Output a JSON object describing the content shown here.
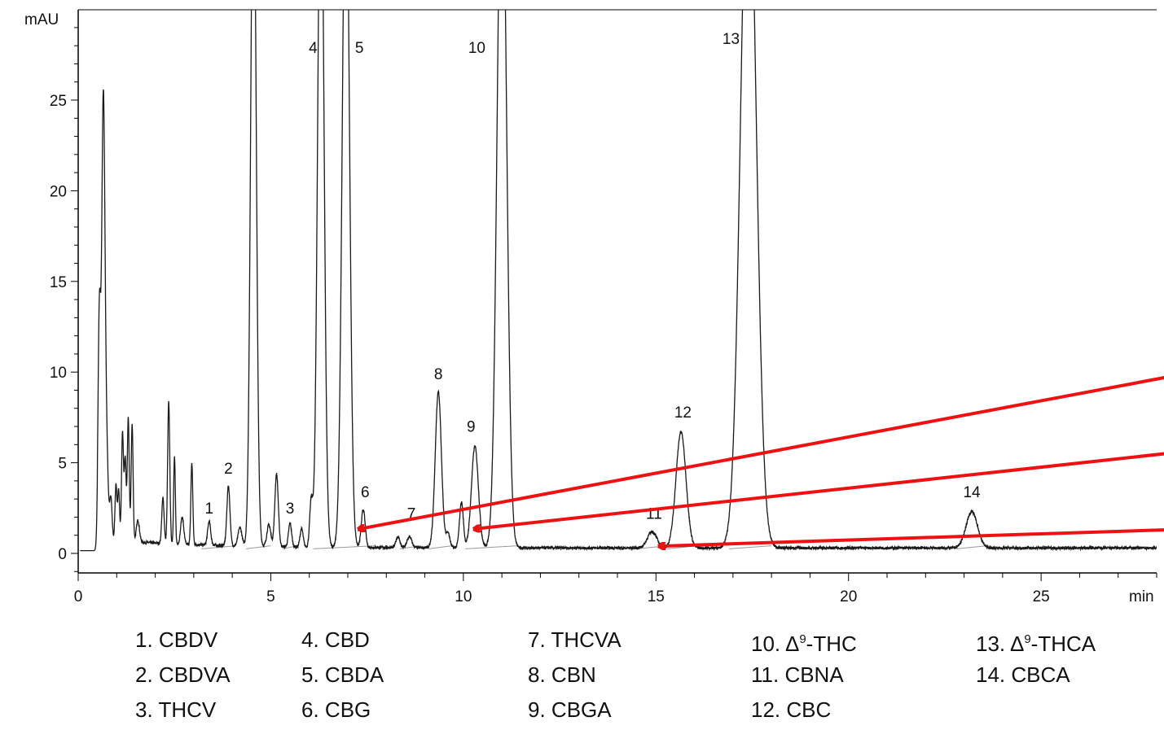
{
  "chart_data": {
    "type": "line",
    "ylabel": "mAU",
    "xlabel": "min",
    "xlim": [
      0,
      28
    ],
    "ylim": [
      -1,
      30
    ],
    "x_ticks": [
      0,
      5,
      10,
      15,
      20,
      25
    ],
    "y_ticks": [
      0,
      5,
      10,
      15,
      20,
      25
    ],
    "grid": false,
    "baseline": 0.3,
    "noise_amplitude": 0.08,
    "background_peaks": [
      {
        "rt": 0.55,
        "height": 12.5,
        "width": 0.035
      },
      {
        "rt": 0.65,
        "height": 22.3,
        "width": 0.04
      },
      {
        "rt": 0.72,
        "height": 6.0,
        "width": 0.05
      },
      {
        "rt": 0.85,
        "height": 2.2,
        "width": 0.03
      },
      {
        "rt": 0.98,
        "height": 3.0,
        "width": 0.025
      },
      {
        "rt": 1.05,
        "height": 2.8,
        "width": 0.025
      },
      {
        "rt": 1.15,
        "height": 6.0,
        "width": 0.025
      },
      {
        "rt": 1.22,
        "height": 4.5,
        "width": 0.025
      },
      {
        "rt": 1.3,
        "height": 6.8,
        "width": 0.025
      },
      {
        "rt": 1.4,
        "height": 6.5,
        "width": 0.025
      },
      {
        "rt": 1.55,
        "height": 1.2,
        "width": 0.04
      },
      {
        "rt": 2.2,
        "height": 2.5,
        "width": 0.03
      },
      {
        "rt": 2.35,
        "height": 7.8,
        "width": 0.028
      },
      {
        "rt": 2.5,
        "height": 4.8,
        "width": 0.022
      },
      {
        "rt": 2.7,
        "height": 1.5,
        "width": 0.04
      },
      {
        "rt": 2.95,
        "height": 4.5,
        "width": 0.025
      },
      {
        "rt": 4.2,
        "height": 1.0,
        "width": 0.05
      },
      {
        "rt": 4.95,
        "height": 1.2,
        "width": 0.05
      },
      {
        "rt": 5.15,
        "height": 4.0,
        "width": 0.045
      },
      {
        "rt": 5.8,
        "height": 1.0,
        "width": 0.04
      },
      {
        "rt": 6.05,
        "height": 2.5,
        "width": 0.04
      },
      {
        "rt": 8.3,
        "height": 0.6,
        "width": 0.05
      },
      {
        "rt": 9.6,
        "height": 0.8,
        "width": 0.05
      },
      {
        "rt": 9.95,
        "height": 2.5,
        "width": 0.05
      }
    ],
    "series": [
      {
        "peaks": [
          {
            "label": "1",
            "rt": 3.4,
            "height": 1.3,
            "width": 0.04
          },
          {
            "label": "2",
            "rt": 3.9,
            "height": 3.3,
            "width": 0.04
          },
          {
            "label": "3",
            "rt": 5.5,
            "height": 1.3,
            "width": 0.04
          },
          {
            "label": "4",
            "rt": 6.3,
            "height": 40,
            "width": 0.08
          },
          {
            "label": "5",
            "rt": 6.95,
            "height": 40,
            "width": 0.09
          },
          {
            "label": "6",
            "rt": 7.4,
            "height": 2.1,
            "width": 0.05
          },
          {
            "label": "7",
            "rt": 8.6,
            "height": 0.6,
            "width": 0.06
          },
          {
            "label": "8",
            "rt": 9.35,
            "height": 8.6,
            "width": 0.08
          },
          {
            "label": "9",
            "rt": 10.3,
            "height": 5.6,
            "width": 0.09
          },
          {
            "label": "10",
            "rt": 11.0,
            "height": 40,
            "width": 0.12
          },
          {
            "label": "11",
            "rt": 14.9,
            "height": 0.9,
            "width": 0.12
          },
          {
            "label": "12",
            "rt": 15.65,
            "height": 6.4,
            "width": 0.13
          },
          {
            "label": "13",
            "rt": 17.4,
            "height": 40,
            "width": 0.2
          },
          {
            "label": "14",
            "rt": 23.2,
            "height": 2.0,
            "width": 0.15
          }
        ],
        "unlabeled_peaks": [
          {
            "rt": 4.55,
            "height": 40,
            "width": 0.07
          }
        ]
      }
    ],
    "peak_labels": [
      {
        "text": "1",
        "x": 3.4,
        "y": 2.2
      },
      {
        "text": "2",
        "x": 3.9,
        "y": 4.4
      },
      {
        "text": "3",
        "x": 5.5,
        "y": 2.2
      },
      {
        "text": "4",
        "x": 6.1,
        "y": 27.6
      },
      {
        "text": "5",
        "x": 7.3,
        "y": 27.6
      },
      {
        "text": "6",
        "x": 7.45,
        "y": 3.1
      },
      {
        "text": "7",
        "x": 8.65,
        "y": 1.9
      },
      {
        "text": "8",
        "x": 9.35,
        "y": 9.6
      },
      {
        "text": "9",
        "x": 10.2,
        "y": 6.7
      },
      {
        "text": "10",
        "x": 10.35,
        "y": 27.6
      },
      {
        "text": "11",
        "x": 14.95,
        "y": 1.9
      },
      {
        "text": "12",
        "x": 15.7,
        "y": 7.5
      },
      {
        "text": "13",
        "x": 16.95,
        "y": 28.1
      },
      {
        "text": "14",
        "x": 23.2,
        "y": 3.1
      }
    ],
    "annotations": [
      {
        "type": "arrow",
        "color": "#ee1111",
        "from": [
          28,
          9.7
        ],
        "to": [
          7.3,
          1.35
        ]
      },
      {
        "type": "arrow",
        "color": "#ee1111",
        "from": [
          28,
          5.5
        ],
        "to": [
          10.3,
          1.35
        ]
      },
      {
        "type": "arrow",
        "color": "#ee1111",
        "from": [
          28,
          1.3
        ],
        "to": [
          15.1,
          0.4
        ]
      }
    ],
    "colors": {
      "trace": "#1a1a1a",
      "baseline_fit": "#999999",
      "axes": "#000000",
      "arrow": "#ee1111"
    }
  },
  "legend": {
    "columns": [
      [
        {
          "num": "1.",
          "name": "CBDV"
        },
        {
          "num": "2.",
          "name": "CBDVA"
        },
        {
          "num": "3.",
          "name": "THCV"
        }
      ],
      [
        {
          "num": "4.",
          "name": "CBD"
        },
        {
          "num": "5.",
          "name": "CBDA"
        },
        {
          "num": "6.",
          "name": "CBG"
        }
      ],
      [
        {
          "num": "7.",
          "name": "THCVA"
        },
        {
          "num": "8.",
          "name": "CBN"
        },
        {
          "num": "9.",
          "name": "CBGA"
        }
      ],
      [
        {
          "num": "10.",
          "pre": "Δ",
          "sup": "9",
          "name": "-THC"
        },
        {
          "num": "11.",
          "name": "CBNA"
        },
        {
          "num": "12.",
          "name": "CBC"
        }
      ],
      [
        {
          "num": "13.",
          "pre": "Δ",
          "sup": "9",
          "name": "-THCA"
        },
        {
          "num": "14.",
          "name": "CBCA"
        }
      ]
    ]
  }
}
